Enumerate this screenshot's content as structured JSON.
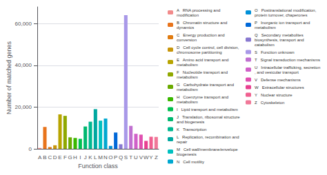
{
  "chart_data": {
    "type": "bar",
    "xlabel": "Function class",
    "ylabel": "Number of matched genes",
    "categories": [
      "A",
      "B",
      "C",
      "D",
      "E",
      "F",
      "G",
      "H",
      "I",
      "J",
      "K",
      "L",
      "M",
      "N",
      "O",
      "P",
      "Q",
      "S",
      "T",
      "U",
      "V",
      "W",
      "Y",
      "Z"
    ],
    "stacked": true,
    "grid": true,
    "ylim": [
      0,
      68000
    ],
    "yticks": [
      0,
      {
        "value": 20000,
        "label": "20,000"
      },
      {
        "value": 40000,
        "label": "40,000"
      },
      {
        "value": 60000,
        "label": "60,000"
      }
    ],
    "series": [
      {
        "name": "A   RNA processing and modification",
        "color": "#f28b8b",
        "values": [
          400,
          null,
          null,
          null,
          null,
          null,
          null,
          null,
          null,
          null,
          null,
          null,
          null,
          null,
          null,
          null,
          null,
          null,
          null,
          null,
          null,
          null,
          null,
          null
        ]
      },
      {
        "name": "B   Chromatin structure and dynamics",
        "color": "#e8741c",
        "values": [
          null,
          10500,
          null,
          null,
          null,
          null,
          null,
          null,
          null,
          null,
          null,
          null,
          null,
          null,
          null,
          null,
          null,
          null,
          null,
          null,
          null,
          null,
          null,
          null
        ]
      },
      {
        "name": "C   Energy production and conversion",
        "color": "#e07b10",
        "values": [
          null,
          null,
          850,
          null,
          null,
          null,
          null,
          null,
          null,
          null,
          null,
          null,
          null,
          null,
          null,
          null,
          null,
          null,
          null,
          null,
          null,
          null,
          null,
          null
        ]
      },
      {
        "name": "D   Cell cycle control, cell division, chromosome partitioning",
        "color": "#c8960a",
        "values": [
          null,
          null,
          null,
          1700,
          null,
          null,
          null,
          null,
          null,
          null,
          null,
          null,
          null,
          null,
          null,
          null,
          null,
          null,
          null,
          null,
          null,
          null,
          null,
          null
        ]
      },
      {
        "name": "E   Amino acid transport and metabolism",
        "color": "#b8a400",
        "values": [
          null,
          null,
          null,
          null,
          16500,
          null,
          null,
          null,
          null,
          null,
          null,
          null,
          null,
          null,
          null,
          null,
          null,
          null,
          null,
          null,
          null,
          null,
          null,
          null
        ]
      },
      {
        "name": "F   Nucleotide transport and metabolism",
        "color": "#90a800",
        "values": [
          null,
          null,
          null,
          null,
          null,
          15800,
          null,
          null,
          null,
          null,
          null,
          null,
          null,
          null,
          null,
          null,
          null,
          null,
          null,
          null,
          null,
          null,
          null,
          null
        ]
      },
      {
        "name": "G   Carbohydrate transport and metabolism",
        "color": "#6aaa00",
        "values": [
          null,
          null,
          null,
          null,
          null,
          null,
          5500,
          null,
          null,
          null,
          null,
          null,
          null,
          null,
          null,
          null,
          null,
          null,
          null,
          null,
          null,
          null,
          null,
          null
        ]
      },
      {
        "name": "H   Coenzyme transport and metabolism",
        "color": "#3ab800",
        "values": [
          null,
          null,
          null,
          null,
          null,
          null,
          null,
          5200,
          null,
          null,
          null,
          null,
          null,
          null,
          null,
          null,
          null,
          null,
          null,
          null,
          null,
          null,
          null,
          null
        ]
      },
      {
        "name": "I   Lipid transport and metabolism",
        "color": "#00c050",
        "values": [
          null,
          null,
          null,
          null,
          null,
          null,
          null,
          null,
          4800,
          null,
          null,
          null,
          null,
          null,
          null,
          null,
          null,
          null,
          null,
          null,
          null,
          null,
          null,
          null
        ]
      },
      {
        "name": "J   Translation, ribosomal structure and biogenesis",
        "color": "#00b870",
        "values": [
          null,
          null,
          null,
          null,
          null,
          null,
          null,
          null,
          null,
          10700,
          null,
          null,
          null,
          null,
          null,
          null,
          null,
          null,
          null,
          null,
          null,
          null,
          null,
          null
        ]
      },
      {
        "name": "K   Transcription",
        "color": "#00b890",
        "values": [
          null,
          null,
          null,
          null,
          null,
          null,
          null,
          null,
          null,
          null,
          13000,
          null,
          null,
          null,
          null,
          null,
          null,
          null,
          null,
          null,
          null,
          null,
          null,
          null
        ]
      },
      {
        "name": "L   Replication, recombination and repair",
        "color": "#00a8a0",
        "values": [
          null,
          null,
          null,
          null,
          null,
          null,
          null,
          null,
          null,
          null,
          null,
          19000,
          null,
          null,
          null,
          null,
          null,
          null,
          null,
          null,
          null,
          null,
          null,
          null
        ]
      },
      {
        "name": "M   Cell wall/membrane/envelope biogenesis",
        "color": "#00c0c0",
        "values": [
          null,
          null,
          null,
          null,
          null,
          null,
          null,
          null,
          null,
          null,
          null,
          null,
          13500,
          null,
          null,
          null,
          null,
          null,
          null,
          null,
          null,
          null,
          null,
          null
        ]
      },
      {
        "name": "N   Cell motility",
        "color": "#00a8d0",
        "values": [
          null,
          null,
          null,
          null,
          null,
          null,
          null,
          null,
          null,
          null,
          null,
          null,
          null,
          14500,
          null,
          null,
          null,
          null,
          null,
          null,
          null,
          null,
          null,
          null
        ]
      },
      {
        "name": "O   Posttranslational modification, protein turnover, chaperones",
        "color": "#0090d8",
        "values": [
          null,
          null,
          null,
          null,
          null,
          null,
          null,
          null,
          null,
          null,
          null,
          null,
          null,
          null,
          1400,
          null,
          null,
          null,
          null,
          null,
          null,
          null,
          null,
          null
        ]
      },
      {
        "name": "P   Inorganic ion transport and metabolism",
        "color": "#0068d8",
        "values": [
          null,
          null,
          null,
          null,
          null,
          null,
          null,
          null,
          null,
          null,
          null,
          null,
          null,
          null,
          null,
          7800,
          null,
          null,
          null,
          null,
          null,
          null,
          null,
          null
        ]
      },
      {
        "name": "Q   Secondary metabolites biosynthesis, transport and catabolism",
        "color": "#8878d0",
        "values": [
          null,
          null,
          null,
          null,
          null,
          null,
          null,
          null,
          null,
          null,
          null,
          null,
          null,
          null,
          null,
          null,
          2200,
          null,
          null,
          null,
          null,
          null,
          null,
          null
        ]
      },
      {
        "name": "S   Function unknown",
        "color": "#a898e8",
        "values": [
          null,
          null,
          null,
          null,
          null,
          null,
          null,
          null,
          null,
          null,
          null,
          null,
          null,
          null,
          null,
          null,
          null,
          64000,
          null,
          null,
          null,
          null,
          null,
          null
        ]
      },
      {
        "name": "T   Signal transduction mechanisms",
        "color": "#c070d0",
        "values": [
          null,
          null,
          null,
          null,
          null,
          null,
          null,
          null,
          null,
          null,
          null,
          null,
          null,
          null,
          null,
          null,
          null,
          null,
          11000,
          null,
          null,
          null,
          null,
          null
        ]
      },
      {
        "name": "U   Intracellular trafficking, secretion, and vesicular transport",
        "color": "#d060c8",
        "values": [
          null,
          null,
          null,
          null,
          null,
          null,
          null,
          null,
          null,
          null,
          null,
          null,
          null,
          null,
          null,
          null,
          null,
          null,
          null,
          7200,
          null,
          null,
          null,
          null
        ]
      },
      {
        "name": "V   Defense mechanisms",
        "color": "#e050b0",
        "values": [
          null,
          null,
          null,
          null,
          null,
          null,
          null,
          null,
          null,
          null,
          null,
          null,
          null,
          null,
          null,
          null,
          null,
          null,
          null,
          null,
          6800,
          null,
          null,
          null
        ]
      },
      {
        "name": "W   Extracellular structures",
        "color": "#e84090",
        "values": [
          null,
          null,
          null,
          null,
          null,
          null,
          null,
          null,
          null,
          null,
          null,
          null,
          null,
          null,
          null,
          null,
          null,
          null,
          null,
          null,
          null,
          3800,
          null,
          null
        ]
      },
      {
        "name": "Y   Nuclear structure",
        "color": "#f06090",
        "values": [
          null,
          null,
          null,
          null,
          null,
          null,
          null,
          null,
          null,
          null,
          null,
          null,
          null,
          null,
          null,
          null,
          null,
          null,
          null,
          null,
          null,
          null,
          5800,
          null
        ]
      },
      {
        "name": "Z   Cytoskeleton",
        "color": "#f07898",
        "values": [
          null,
          null,
          null,
          null,
          null,
          null,
          null,
          null,
          null,
          null,
          null,
          null,
          null,
          null,
          null,
          null,
          null,
          null,
          null,
          null,
          null,
          null,
          null,
          5700
        ]
      }
    ]
  }
}
